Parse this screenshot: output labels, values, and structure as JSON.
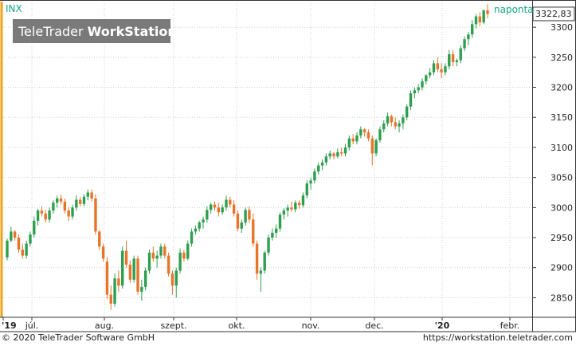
{
  "header": {
    "symbol": "INX",
    "interval": "naponta",
    "logo_brand": "TeleTrader",
    "logo_product": "WorkStation",
    "last_price": "3322,83"
  },
  "footer": {
    "copyright": "© 2020 TeleTrader Software GmbH",
    "url": "https://workstation.teletrader.com"
  },
  "colors": {
    "up": "#2e9e4f",
    "down": "#e8742a",
    "accent": "#17a589",
    "grid": "#cfcfcf"
  },
  "chart_data": {
    "type": "candlestick",
    "y_axis": {
      "min": 2820,
      "max": 3340,
      "ticks": [
        "2850",
        "2900",
        "2950",
        "3000",
        "3050",
        "3100",
        "3150",
        "3200",
        "3250",
        "3300"
      ],
      "side": "right"
    },
    "x_axis_labels": [
      "'19",
      "júl.",
      "aug.",
      "szept.",
      "okt.",
      "nov.",
      "dec.",
      "'20",
      "febr."
    ],
    "last_value": 3322.83,
    "candles": [
      [
        2917,
        2948,
        2912,
        2945
      ],
      [
        2945,
        2968,
        2942,
        2960
      ],
      [
        2960,
        2962,
        2945,
        2950
      ],
      [
        2950,
        2955,
        2925,
        2930
      ],
      [
        2930,
        2940,
        2915,
        2920
      ],
      [
        2920,
        2945,
        2915,
        2940
      ],
      [
        2940,
        2960,
        2935,
        2955
      ],
      [
        2955,
        2985,
        2950,
        2978
      ],
      [
        2978,
        2998,
        2970,
        2995
      ],
      [
        2995,
        3002,
        2985,
        2990
      ],
      [
        2990,
        2996,
        2975,
        2980
      ],
      [
        2980,
        3000,
        2975,
        2995
      ],
      [
        2995,
        3012,
        2990,
        3008
      ],
      [
        3008,
        3020,
        3000,
        3015
      ],
      [
        3015,
        3022,
        3005,
        3010
      ],
      [
        3010,
        3015,
        2990,
        2995
      ],
      [
        2995,
        3000,
        2978,
        2985
      ],
      [
        2985,
        3005,
        2980,
        3000
      ],
      [
        3000,
        3020,
        2995,
        3013
      ],
      [
        3013,
        3018,
        3002,
        3006
      ],
      [
        3006,
        3022,
        3002,
        3018
      ],
      [
        3018,
        3030,
        3012,
        3025
      ],
      [
        3025,
        3030,
        3010,
        3015
      ],
      [
        3015,
        3022,
        2955,
        2960
      ],
      [
        2960,
        2962,
        2930,
        2935
      ],
      [
        2935,
        2940,
        2910,
        2915
      ],
      [
        2910,
        2918,
        2848,
        2855
      ],
      [
        2855,
        2870,
        2830,
        2840
      ],
      [
        2840,
        2890,
        2835,
        2882
      ],
      [
        2882,
        2895,
        2860,
        2870
      ],
      [
        2870,
        2935,
        2865,
        2928
      ],
      [
        2928,
        2945,
        2900,
        2905
      ],
      [
        2905,
        2912,
        2875,
        2880
      ],
      [
        2880,
        2920,
        2875,
        2915
      ],
      [
        2915,
        2920,
        2855,
        2860
      ],
      [
        2860,
        2880,
        2845,
        2868
      ],
      [
        2868,
        2900,
        2862,
        2895
      ],
      [
        2895,
        2930,
        2890,
        2925
      ],
      [
        2925,
        2935,
        2910,
        2915
      ],
      [
        2915,
        2928,
        2900,
        2920
      ],
      [
        2920,
        2940,
        2915,
        2935
      ],
      [
        2935,
        2940,
        2915,
        2920
      ],
      [
        2920,
        2925,
        2885,
        2890
      ],
      [
        2890,
        2895,
        2855,
        2870
      ],
      [
        2870,
        2900,
        2850,
        2895
      ],
      [
        2895,
        2932,
        2890,
        2925
      ],
      [
        2925,
        2930,
        2910,
        2915
      ],
      [
        2915,
        2945,
        2912,
        2940
      ],
      [
        2940,
        2965,
        2935,
        2960
      ],
      [
        2960,
        2970,
        2955,
        2965
      ],
      [
        2965,
        2978,
        2960,
        2975
      ],
      [
        2975,
        2985,
        2965,
        2980
      ],
      [
        2980,
        3002,
        2975,
        2996
      ],
      [
        2996,
        3008,
        2990,
        3005
      ],
      [
        3005,
        3010,
        2995,
        3000
      ],
      [
        3000,
        3008,
        2985,
        2992
      ],
      [
        2992,
        3005,
        2988,
        3000
      ],
      [
        3000,
        3020,
        2995,
        3013
      ],
      [
        3013,
        3018,
        3000,
        3005
      ],
      [
        3005,
        3012,
        2985,
        2990
      ],
      [
        2990,
        2995,
        2960,
        2965
      ],
      [
        2965,
        2980,
        2958,
        2975
      ],
      [
        2975,
        3000,
        2970,
        2996
      ],
      [
        2996,
        3002,
        2975,
        2980
      ],
      [
        2980,
        2990,
        2935,
        2940
      ],
      [
        2940,
        2945,
        2880,
        2890
      ],
      [
        2890,
        2900,
        2860,
        2895
      ],
      [
        2895,
        2928,
        2890,
        2925
      ],
      [
        2925,
        2955,
        2920,
        2950
      ],
      [
        2950,
        2965,
        2945,
        2958
      ],
      [
        2958,
        2972,
        2950,
        2965
      ],
      [
        2965,
        2992,
        2960,
        2988
      ],
      [
        2988,
        2999,
        2980,
        2995
      ],
      [
        2995,
        3005,
        2985,
        3000
      ],
      [
        3000,
        3010,
        2993,
        2997
      ],
      [
        2997,
        3012,
        2992,
        3008
      ],
      [
        3008,
        3012,
        2998,
        3004
      ],
      [
        3004,
        3025,
        3000,
        3020
      ],
      [
        3020,
        3045,
        3015,
        3040
      ],
      [
        3040,
        3050,
        3030,
        3045
      ],
      [
        3045,
        3065,
        3040,
        3060
      ],
      [
        3060,
        3075,
        3055,
        3070
      ],
      [
        3070,
        3080,
        3062,
        3075
      ],
      [
        3075,
        3090,
        3070,
        3085
      ],
      [
        3085,
        3095,
        3080,
        3090
      ],
      [
        3090,
        3092,
        3080,
        3085
      ],
      [
        3085,
        3098,
        3082,
        3092
      ],
      [
        3092,
        3100,
        3085,
        3090
      ],
      [
        3090,
        3106,
        3085,
        3100
      ],
      [
        3100,
        3120,
        3095,
        3115
      ],
      [
        3115,
        3122,
        3105,
        3110
      ],
      [
        3110,
        3125,
        3105,
        3120
      ],
      [
        3120,
        3135,
        3115,
        3130
      ],
      [
        3130,
        3132,
        3118,
        3125
      ],
      [
        3125,
        3130,
        3110,
        3115
      ],
      [
        3115,
        3120,
        3070,
        3090
      ],
      [
        3090,
        3115,
        3085,
        3112
      ],
      [
        3112,
        3135,
        3108,
        3130
      ],
      [
        3130,
        3145,
        3125,
        3140
      ],
      [
        3140,
        3158,
        3135,
        3152
      ],
      [
        3152,
        3155,
        3135,
        3142
      ],
      [
        3142,
        3150,
        3130,
        3135
      ],
      [
        3135,
        3145,
        3125,
        3140
      ],
      [
        3140,
        3155,
        3130,
        3150
      ],
      [
        3150,
        3172,
        3145,
        3168
      ],
      [
        3168,
        3195,
        3162,
        3190
      ],
      [
        3190,
        3200,
        3182,
        3195
      ],
      [
        3195,
        3205,
        3190,
        3200
      ],
      [
        3200,
        3215,
        3195,
        3210
      ],
      [
        3210,
        3222,
        3205,
        3220
      ],
      [
        3220,
        3232,
        3215,
        3225
      ],
      [
        3225,
        3245,
        3220,
        3240
      ],
      [
        3240,
        3250,
        3225,
        3230
      ],
      [
        3230,
        3240,
        3215,
        3225
      ],
      [
        3225,
        3240,
        3220,
        3235
      ],
      [
        3235,
        3262,
        3230,
        3255
      ],
      [
        3255,
        3262,
        3235,
        3242
      ],
      [
        3242,
        3248,
        3235,
        3245
      ],
      [
        3245,
        3270,
        3240,
        3265
      ],
      [
        3265,
        3285,
        3260,
        3280
      ],
      [
        3280,
        3292,
        3270,
        3288
      ],
      [
        3288,
        3312,
        3282,
        3305
      ],
      [
        3305,
        3322,
        3298,
        3318
      ],
      [
        3318,
        3325,
        3302,
        3308
      ],
      [
        3308,
        3330,
        3305,
        3328
      ],
      [
        3328,
        3338,
        3315,
        3322
      ]
    ]
  }
}
